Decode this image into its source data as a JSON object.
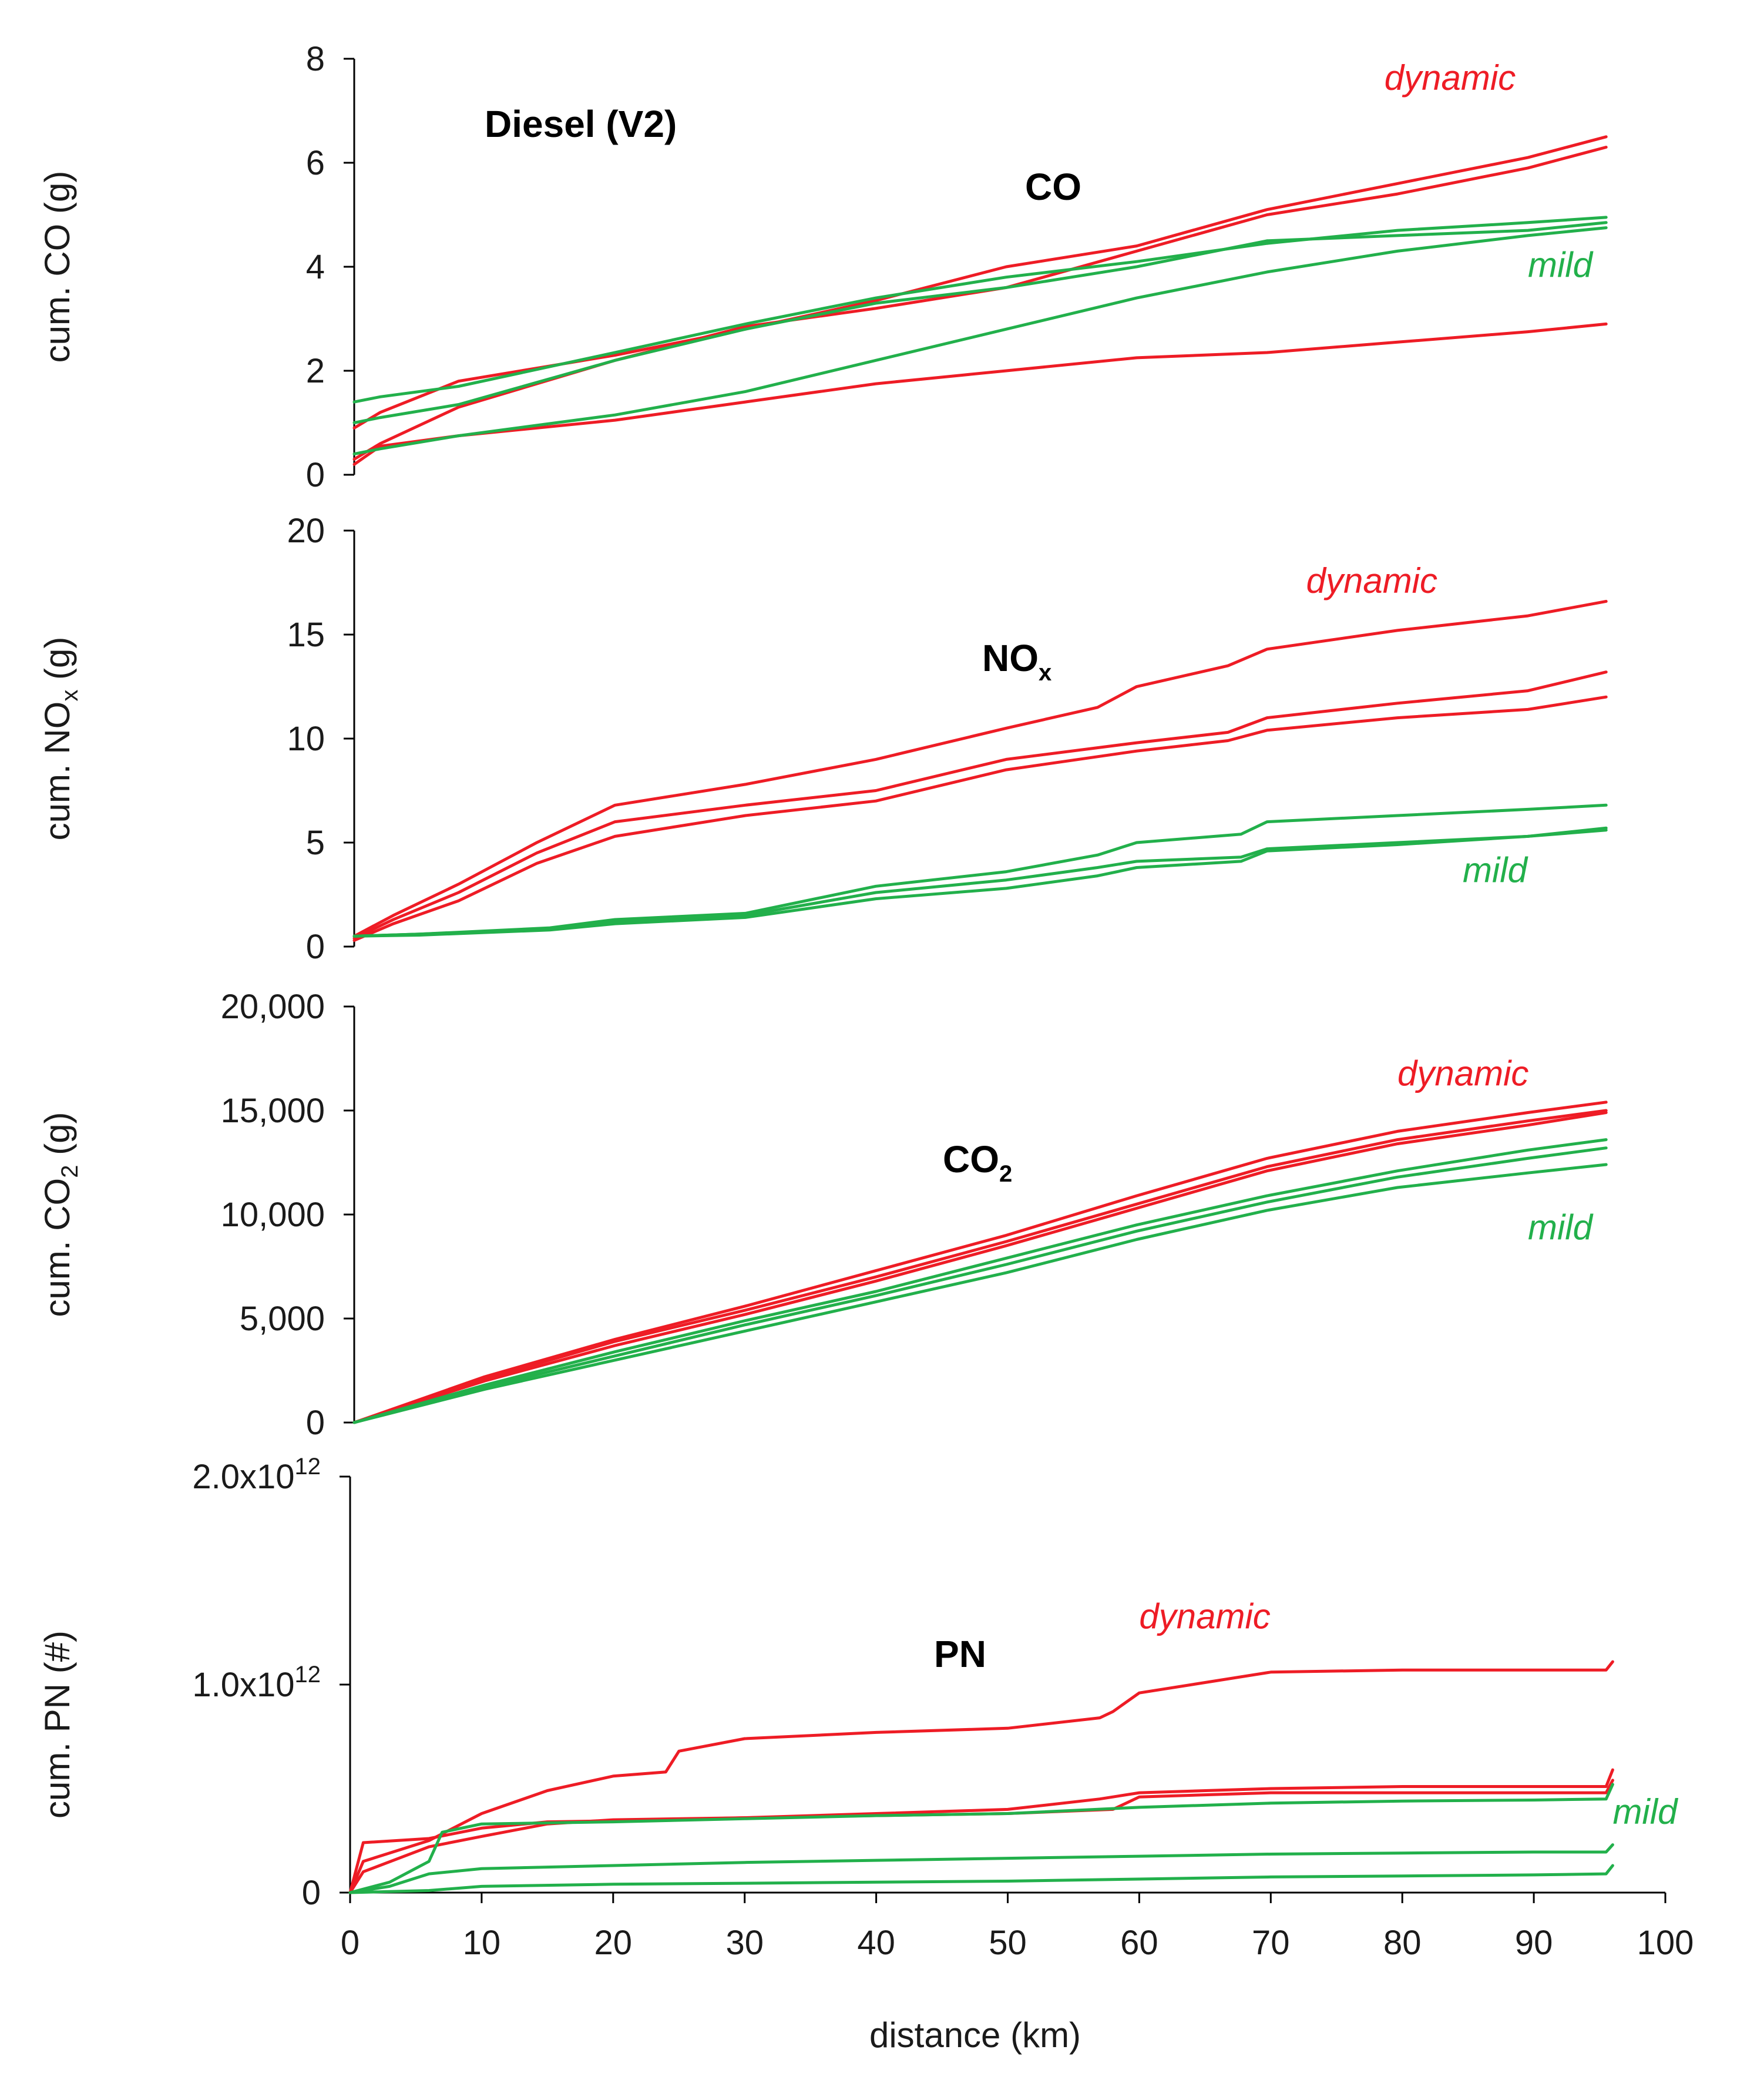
{
  "chart_data": {
    "type": "line",
    "title": "Diesel (V2)",
    "xlabel": "distance (km)",
    "xlim": [
      0,
      100
    ],
    "x_ticks": [
      "0",
      "10",
      "20",
      "30",
      "40",
      "50",
      "60",
      "70",
      "80",
      "90",
      "100"
    ],
    "colors": {
      "dynamic": "#ee1c25",
      "mild": "#22b04b"
    },
    "legend": {
      "dynamic": "dynamic",
      "mild": "mild"
    },
    "panels": [
      {
        "label": "CO",
        "ylabel": "cum. CO (g)",
        "ylim": [
          0,
          8
        ],
        "y_ticks": [
          "0",
          "2",
          "4",
          "6",
          "8"
        ],
        "series": [
          {
            "name": "dynamic",
            "group": "dynamic",
            "x": [
              0,
              2,
              8,
              20,
              30,
              40,
              50,
              60,
              70,
              80,
              90,
              96
            ],
            "y": [
              0.9,
              1.2,
              1.8,
              2.3,
              2.8,
              3.35,
              4.0,
              4.4,
              5.1,
              5.6,
              6.1,
              6.5
            ]
          },
          {
            "name": "dynamic",
            "group": "dynamic",
            "x": [
              0,
              2,
              8,
              20,
              30,
              40,
              50,
              60,
              70,
              80,
              90,
              96
            ],
            "y": [
              0.3,
              0.6,
              1.3,
              2.2,
              2.85,
              3.2,
              3.6,
              4.3,
              5.0,
              5.4,
              5.9,
              6.3
            ]
          },
          {
            "name": "dynamic",
            "group": "dynamic",
            "x": [
              0,
              2,
              8,
              20,
              30,
              40,
              50,
              60,
              70,
              80,
              90,
              96
            ],
            "y": [
              0.2,
              0.55,
              0.75,
              1.05,
              1.4,
              1.75,
              2.0,
              2.25,
              2.35,
              2.55,
              2.75,
              2.9
            ]
          },
          {
            "name": "mild",
            "group": "mild",
            "x": [
              0,
              2,
              8,
              20,
              30,
              40,
              50,
              60,
              70,
              80,
              90,
              96
            ],
            "y": [
              1.4,
              1.5,
              1.7,
              2.35,
              2.9,
              3.4,
              3.8,
              4.1,
              4.45,
              4.7,
              4.85,
              4.95
            ]
          },
          {
            "name": "mild",
            "group": "mild",
            "x": [
              0,
              2,
              8,
              20,
              30,
              40,
              50,
              60,
              70,
              80,
              90,
              96
            ],
            "y": [
              1.0,
              1.1,
              1.35,
              2.2,
              2.8,
              3.3,
              3.6,
              4.0,
              4.5,
              4.6,
              4.7,
              4.85
            ]
          },
          {
            "name": "mild",
            "group": "mild",
            "x": [
              0,
              2,
              8,
              20,
              30,
              40,
              50,
              60,
              70,
              80,
              90,
              96
            ],
            "y": [
              0.4,
              0.5,
              0.75,
              1.15,
              1.6,
              2.2,
              2.8,
              3.4,
              3.9,
              4.3,
              4.6,
              4.75
            ]
          }
        ],
        "annotations": [
          {
            "text": "dynamic",
            "group": "dynamic",
            "x": 79,
            "y": 7.4
          },
          {
            "text": "mild",
            "group": "mild",
            "x": 90,
            "y": 3.8
          }
        ]
      },
      {
        "label": "NO",
        "label_sub": "x",
        "ylabel": "cum. NO",
        "ylabel_sub": "x",
        "ylabel_tail": " (g)",
        "ylim": [
          0,
          20
        ],
        "y_ticks": [
          "0",
          "5",
          "10",
          "15",
          "20"
        ],
        "series": [
          {
            "name": "dynamic",
            "group": "dynamic",
            "x": [
              0,
              3,
              8,
              14,
              20,
              30,
              40,
              50,
              57,
              60,
              67,
              70,
              80,
              90,
              96
            ],
            "y": [
              0.5,
              1.5,
              3.0,
              5.0,
              6.8,
              7.8,
              9.0,
              10.5,
              11.5,
              12.5,
              13.5,
              14.3,
              15.2,
              15.9,
              16.6
            ]
          },
          {
            "name": "dynamic",
            "group": "dynamic",
            "x": [
              0,
              3,
              8,
              14,
              20,
              30,
              40,
              50,
              60,
              67,
              70,
              80,
              90,
              96
            ],
            "y": [
              0.4,
              1.3,
              2.6,
              4.5,
              6.0,
              6.8,
              7.5,
              9.0,
              9.8,
              10.3,
              11.0,
              11.7,
              12.3,
              13.2
            ]
          },
          {
            "name": "dynamic",
            "group": "dynamic",
            "x": [
              0,
              3,
              8,
              14,
              20,
              30,
              40,
              50,
              60,
              67,
              70,
              80,
              90,
              96
            ],
            "y": [
              0.3,
              1.1,
              2.2,
              4.0,
              5.3,
              6.3,
              7.0,
              8.5,
              9.4,
              9.9,
              10.4,
              11.0,
              11.4,
              12.0
            ]
          },
          {
            "name": "mild",
            "group": "mild",
            "x": [
              0,
              5,
              15,
              20,
              30,
              40,
              50,
              57,
              60,
              68,
              70,
              80,
              90,
              96
            ],
            "y": [
              0.5,
              0.6,
              0.9,
              1.3,
              1.6,
              2.9,
              3.6,
              4.4,
              5.0,
              5.4,
              6.0,
              6.3,
              6.6,
              6.8
            ]
          },
          {
            "name": "mild",
            "group": "mild",
            "x": [
              0,
              5,
              15,
              20,
              30,
              40,
              50,
              57,
              60,
              68,
              70,
              80,
              90,
              96
            ],
            "y": [
              0.5,
              0.6,
              0.85,
              1.2,
              1.5,
              2.6,
              3.2,
              3.8,
              4.1,
              4.3,
              4.7,
              5.0,
              5.3,
              5.7
            ]
          },
          {
            "name": "mild",
            "group": "mild",
            "x": [
              0,
              5,
              15,
              20,
              30,
              40,
              50,
              57,
              60,
              68,
              70,
              80,
              90,
              96
            ],
            "y": [
              0.5,
              0.55,
              0.8,
              1.1,
              1.4,
              2.3,
              2.8,
              3.4,
              3.8,
              4.1,
              4.6,
              4.9,
              5.3,
              5.6
            ]
          }
        ],
        "annotations": [
          {
            "text": "dynamic",
            "group": "dynamic",
            "x": 73,
            "y": 17.0
          },
          {
            "text": "mild",
            "group": "mild",
            "x": 85,
            "y": 3.1
          }
        ]
      },
      {
        "label": "CO",
        "label_sub": "2",
        "ylabel": "cum. CO",
        "ylabel_sub": "2",
        "ylabel_tail": " (g)",
        "ylim": [
          0,
          20000
        ],
        "y_ticks": [
          "0",
          "5,000",
          "10,000",
          "15,000",
          "20,000"
        ],
        "series": [
          {
            "name": "dynamic",
            "group": "dynamic",
            "x": [
              0,
              10,
              20,
              30,
              40,
              50,
              60,
              70,
              80,
              90,
              96
            ],
            "y": [
              0,
              2200,
              4000,
              5600,
              7300,
              9000,
              10900,
              12700,
              14000,
              14900,
              15400
            ]
          },
          {
            "name": "dynamic",
            "group": "dynamic",
            "x": [
              0,
              10,
              20,
              30,
              40,
              50,
              60,
              70,
              80,
              90,
              96
            ],
            "y": [
              0,
              2100,
              3900,
              5400,
              7000,
              8700,
              10500,
              12300,
              13600,
              14500,
              15000
            ]
          },
          {
            "name": "dynamic",
            "group": "dynamic",
            "x": [
              0,
              10,
              20,
              30,
              40,
              50,
              60,
              70,
              80,
              90,
              96
            ],
            "y": [
              0,
              2000,
              3700,
              5200,
              6800,
              8500,
              10300,
              12100,
              13400,
              14300,
              14900
            ]
          },
          {
            "name": "mild",
            "group": "mild",
            "x": [
              0,
              10,
              20,
              30,
              40,
              50,
              60,
              70,
              80,
              90,
              96
            ],
            "y": [
              0,
              1800,
              3400,
              4900,
              6300,
              7900,
              9500,
              10900,
              12100,
              13100,
              13600
            ]
          },
          {
            "name": "mild",
            "group": "mild",
            "x": [
              0,
              10,
              20,
              30,
              40,
              50,
              60,
              70,
              80,
              90,
              96
            ],
            "y": [
              0,
              1700,
              3200,
              4700,
              6100,
              7600,
              9200,
              10600,
              11800,
              12700,
              13200
            ]
          },
          {
            "name": "mild",
            "group": "mild",
            "x": [
              0,
              10,
              20,
              30,
              40,
              50,
              60,
              70,
              80,
              90,
              96
            ],
            "y": [
              0,
              1600,
              3000,
              4400,
              5800,
              7200,
              8800,
              10200,
              11300,
              12000,
              12400
            ]
          }
        ],
        "annotations": [
          {
            "text": "dynamic",
            "group": "dynamic",
            "x": 80,
            "y": 16200
          },
          {
            "text": "mild",
            "group": "mild",
            "x": 90,
            "y": 8800
          }
        ]
      },
      {
        "label": "PN",
        "ylabel": "cum. PN (#)",
        "ylim": [
          0,
          2000000000000.0
        ],
        "y_ticks": [
          "0",
          "1.0x10",
          "2.0x10"
        ],
        "y_tick_exponents": [
          "",
          "12",
          "12"
        ],
        "series": [
          {
            "name": "dynamic",
            "group": "dynamic",
            "x": [
              0,
              1,
              6,
              10,
              15,
              20,
              24,
              25,
              30,
              40,
              50,
              57,
              58,
              60,
              65,
              70,
              80,
              90,
              95.5,
              96
            ],
            "y": [
              0,
              150000000000.0,
              250000000000.0,
              380000000000.0,
              490000000000.0,
              560000000000.0,
              580000000000.0,
              680000000000.0,
              740000000000.0,
              770000000000.0,
              790000000000.0,
              840000000000.0,
              870000000000.0,
              960000000000.0,
              1010000000000.0,
              1060000000000.0,
              1070000000000.0,
              1070000000000.0,
              1070000000000.0,
              1110000000000.0
            ]
          },
          {
            "name": "dynamic",
            "group": "dynamic",
            "x": [
              0,
              1,
              6,
              10,
              15,
              20,
              30,
              40,
              50,
              57,
              60,
              70,
              80,
              90,
              95.5,
              96
            ],
            "y": [
              0,
              240000000000.0,
              260000000000.0,
              310000000000.0,
              340000000000.0,
              345000000000.0,
              360000000000.0,
              380000000000.0,
              400000000000.0,
              450000000000.0,
              480000000000.0,
              500000000000.0,
              510000000000.0,
              510000000000.0,
              510000000000.0,
              590000000000.0
            ]
          },
          {
            "name": "dynamic",
            "group": "dynamic",
            "x": [
              0,
              1,
              6,
              10,
              15,
              20,
              30,
              40,
              50,
              58,
              60,
              70,
              80,
              90,
              95.5,
              96
            ],
            "y": [
              0,
              100000000000.0,
              220000000000.0,
              270000000000.0,
              330000000000.0,
              350000000000.0,
              360000000000.0,
              370000000000.0,
              380000000000.0,
              400000000000.0,
              460000000000.0,
              480000000000.0,
              480000000000.0,
              480000000000.0,
              480000000000.0,
              540000000000.0
            ]
          },
          {
            "name": "mild",
            "group": "mild",
            "x": [
              0,
              3,
              6,
              7,
              10,
              20,
              30,
              40,
              50,
              60,
              70,
              80,
              90,
              95.5,
              96
            ],
            "y": [
              0,
              50000000000.0,
              150000000000.0,
              290000000000.0,
              330000000000.0,
              340000000000.0,
              355000000000.0,
              370000000000.0,
              380000000000.0,
              410000000000.0,
              430000000000.0,
              440000000000.0,
              445000000000.0,
              450000000000.0,
              520000000000.0
            ]
          },
          {
            "name": "mild",
            "group": "mild",
            "x": [
              0,
              3,
              6,
              10,
              20,
              30,
              40,
              50,
              60,
              70,
              80,
              90,
              95.5,
              96
            ],
            "y": [
              0,
              30000000000.0,
              90000000000.0,
              115000000000.0,
              130000000000.0,
              145000000000.0,
              155000000000.0,
              165000000000.0,
              175000000000.0,
              185000000000.0,
              190000000000.0,
              195000000000.0,
              195000000000.0,
              230000000000.0
            ]
          },
          {
            "name": "mild",
            "group": "mild",
            "x": [
              0,
              6,
              10,
              20,
              30,
              40,
              50,
              60,
              70,
              80,
              90,
              95.5,
              96
            ],
            "y": [
              0,
              10000000000.0,
              30000000000.0,
              40000000000.0,
              45000000000.0,
              50000000000.0,
              55000000000.0,
              65000000000.0,
              75000000000.0,
              80000000000.0,
              85000000000.0,
              90000000000.0,
              130000000000.0
            ]
          }
        ],
        "annotations": [
          {
            "text": "dynamic",
            "group": "dynamic",
            "x": 60,
            "y": 1270000000000.0
          },
          {
            "text": "mild",
            "group": "mild",
            "x": 96,
            "y": 330000000000.0
          }
        ]
      }
    ]
  }
}
